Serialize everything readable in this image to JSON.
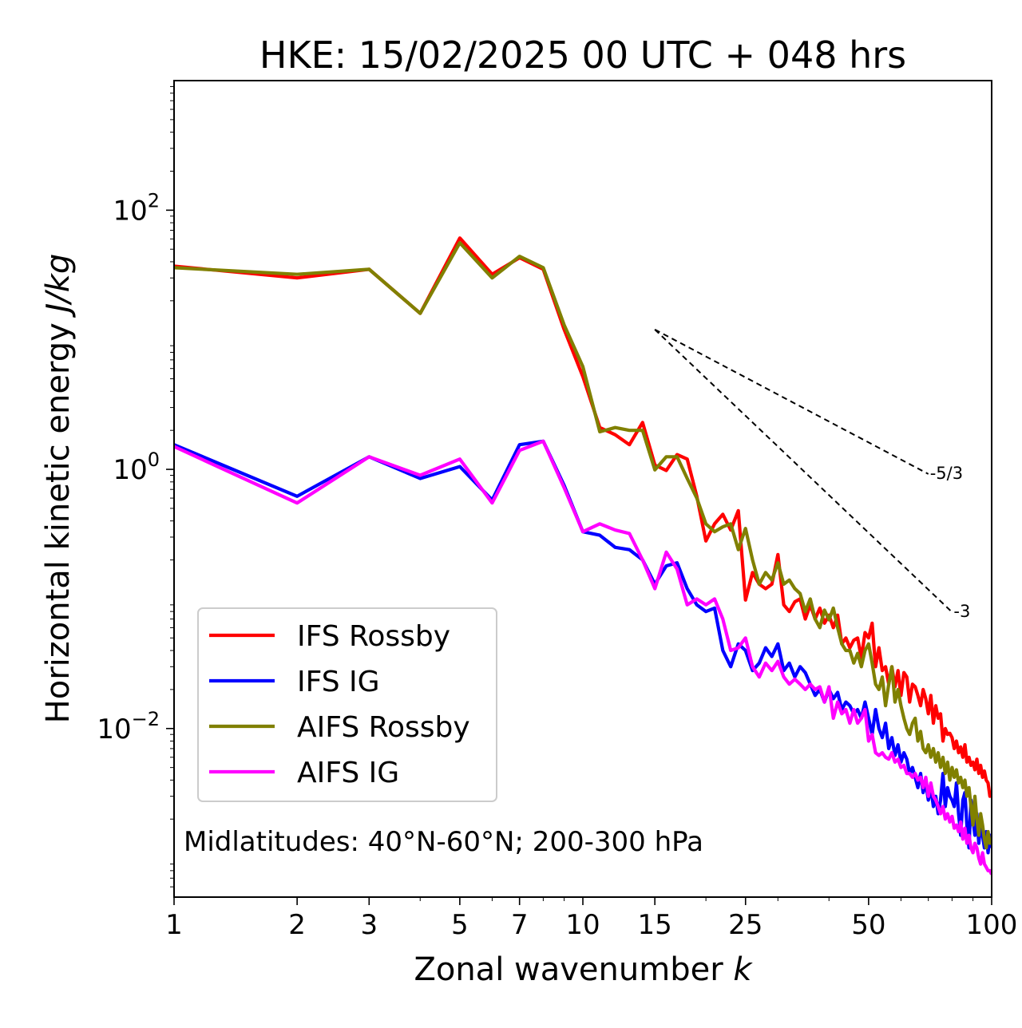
{
  "chart_data": {
    "type": "line",
    "title": "HKE: 15/02/2025 00 UTC + 048 hrs",
    "xlabel": "Zonal wavenumber k",
    "ylabel": "Horizontal kinetic energy J/kg",
    "xscale": "log",
    "yscale": "log",
    "xlim": [
      1,
      100
    ],
    "ylim": [
      0.0005,
      1000
    ],
    "grid": false,
    "legend_position": "lower-left",
    "x_ticks": [
      "1",
      "2",
      "3",
      "5",
      "7",
      "10",
      "15",
      "25",
      "50",
      "100"
    ],
    "y_ticks": [
      "10^2",
      "10^0",
      "10^-2"
    ],
    "annotation": "Midlatitudes: 40°N-60°N; 200-300 hPa",
    "reference_slopes": [
      {
        "label": "-5/3",
        "slope": -1.6667,
        "x_start": 15,
        "x_end": 70
      },
      {
        "label": "-3",
        "slope": -3,
        "x_start": 15,
        "x_end": 80
      }
    ],
    "x": [
      1,
      2,
      3,
      4,
      5,
      6,
      7,
      8,
      9,
      10,
      11,
      12,
      13,
      14,
      15,
      16,
      17,
      18,
      19,
      20,
      21,
      22,
      23,
      24,
      25,
      26,
      27,
      28,
      29,
      30,
      31,
      32,
      33,
      34,
      35,
      36,
      37,
      38,
      39,
      40,
      41,
      42,
      43,
      44,
      45,
      46,
      47,
      48,
      49,
      50,
      51,
      52,
      53,
      54,
      55,
      56,
      57,
      58,
      59,
      60,
      61,
      62,
      63,
      64,
      65,
      66,
      67,
      68,
      69,
      70,
      71,
      72,
      73,
      74,
      75,
      76,
      77,
      78,
      79,
      80,
      81,
      82,
      83,
      84,
      85,
      86,
      87,
      88,
      89,
      90,
      91,
      92,
      93,
      94,
      95,
      96,
      97,
      98,
      99,
      100
    ],
    "series": [
      {
        "name": "IFS Rossby",
        "color": "#ff0000",
        "values": [
          37,
          30,
          35,
          16,
          61,
          32,
          43,
          35,
          12,
          5.2,
          2.1,
          1.85,
          1.55,
          2.3,
          1.08,
          0.98,
          1.3,
          1.2,
          0.62,
          0.28,
          0.38,
          0.45,
          0.34,
          0.48,
          0.098,
          0.16,
          0.13,
          0.12,
          0.13,
          0.22,
          0.09,
          0.08,
          0.095,
          0.1,
          0.07,
          0.09,
          0.07,
          0.085,
          0.065,
          0.075,
          0.06,
          0.075,
          0.045,
          0.05,
          0.042,
          0.048,
          0.05,
          0.035,
          0.055,
          0.05,
          0.065,
          0.03,
          0.042,
          0.028,
          0.03,
          0.022,
          0.03,
          0.021,
          0.028,
          0.018,
          0.027,
          0.025,
          0.016,
          0.022,
          0.021,
          0.018,
          0.015,
          0.02,
          0.017,
          0.013,
          0.018,
          0.011,
          0.015,
          0.012,
          0.013,
          0.008,
          0.01,
          0.009,
          0.0092,
          0.0085,
          0.007,
          0.008,
          0.0065,
          0.0072,
          0.006,
          0.0075,
          0.0055,
          0.006,
          0.0052,
          0.0055,
          0.0048,
          0.0058,
          0.0045,
          0.0052,
          0.0042,
          0.0047,
          0.004,
          0.0038,
          0.003,
          0.0032
        ]
      },
      {
        "name": "IFS IG",
        "color": "#0000ff",
        "values": [
          1.55,
          0.62,
          1.25,
          0.85,
          1.05,
          0.58,
          1.55,
          1.65,
          0.75,
          0.33,
          0.31,
          0.25,
          0.24,
          0.2,
          0.13,
          0.18,
          0.19,
          0.12,
          0.09,
          0.08,
          0.085,
          0.04,
          0.03,
          0.045,
          0.04,
          0.028,
          0.032,
          0.042,
          0.036,
          0.045,
          0.028,
          0.032,
          0.025,
          0.03,
          0.027,
          0.022,
          0.018,
          0.02,
          0.016,
          0.02,
          0.017,
          0.019,
          0.014,
          0.016,
          0.015,
          0.013,
          0.014,
          0.012,
          0.016,
          0.012,
          0.009,
          0.014,
          0.01,
          0.0085,
          0.011,
          0.007,
          0.0085,
          0.0062,
          0.0075,
          0.0055,
          0.0065,
          0.0058,
          0.0045,
          0.005,
          0.0042,
          0.0035,
          0.0045,
          0.0032,
          0.0038,
          0.0028,
          0.0035,
          0.0025,
          0.003,
          0.0022,
          0.0028,
          0.0045,
          0.0025,
          0.0035,
          0.003,
          0.0028,
          0.0025,
          0.0038,
          0.0022,
          0.0015,
          0.0028,
          0.0032,
          0.0018,
          0.0012,
          0.0028,
          0.002,
          0.0015,
          0.0022,
          0.0013,
          0.0018,
          0.0015,
          0.0012,
          0.0016,
          0.0011,
          0.0015,
          0.0012
        ]
      },
      {
        "name": "AIFS Rossby",
        "color": "#808000",
        "values": [
          36,
          32,
          35,
          16,
          56,
          30,
          44,
          36,
          13,
          6.2,
          1.95,
          2.1,
          2.0,
          2.0,
          0.99,
          1.25,
          1.25,
          0.85,
          0.6,
          0.38,
          0.33,
          0.36,
          0.38,
          0.24,
          0.35,
          0.2,
          0.13,
          0.16,
          0.14,
          0.19,
          0.13,
          0.14,
          0.12,
          0.11,
          0.08,
          0.1,
          0.07,
          0.06,
          0.082,
          0.069,
          0.085,
          0.06,
          0.045,
          0.04,
          0.04,
          0.032,
          0.038,
          0.03,
          0.04,
          0.045,
          0.032,
          0.022,
          0.02,
          0.025,
          0.015,
          0.022,
          0.03,
          0.016,
          0.02,
          0.015,
          0.012,
          0.01,
          0.009,
          0.011,
          0.012,
          0.008,
          0.0095,
          0.007,
          0.0065,
          0.0075,
          0.006,
          0.007,
          0.0055,
          0.0065,
          0.005,
          0.006,
          0.0045,
          0.0055,
          0.004,
          0.005,
          0.0042,
          0.0048,
          0.0038,
          0.0042,
          0.0035,
          0.004,
          0.003,
          0.0035,
          0.0025,
          0.0018,
          0.003,
          0.002,
          0.0015,
          0.0022,
          0.0018,
          0.0014,
          0.0012,
          0.0016,
          0.0013,
          0.0014
        ]
      },
      {
        "name": "AIFS IG",
        "color": "#ff00ff",
        "values": [
          1.5,
          0.55,
          1.25,
          0.9,
          1.2,
          0.55,
          1.4,
          1.65,
          0.72,
          0.33,
          0.38,
          0.34,
          0.32,
          0.2,
          0.12,
          0.23,
          0.17,
          0.09,
          0.1,
          0.09,
          0.1,
          0.07,
          0.04,
          0.042,
          0.05,
          0.03,
          0.025,
          0.032,
          0.028,
          0.033,
          0.025,
          0.022,
          0.024,
          0.022,
          0.02,
          0.022,
          0.02,
          0.021,
          0.016,
          0.021,
          0.012,
          0.016,
          0.013,
          0.014,
          0.011,
          0.014,
          0.011,
          0.012,
          0.014,
          0.008,
          0.009,
          0.0065,
          0.0062,
          0.0065,
          0.006,
          0.0058,
          0.0065,
          0.0055,
          0.0058,
          0.005,
          0.0052,
          0.0045,
          0.0045,
          0.0042,
          0.0045,
          0.004,
          0.0042,
          0.0035,
          0.0042,
          0.003,
          0.0038,
          0.003,
          0.0028,
          0.0025,
          0.0022,
          0.0025,
          0.002,
          0.0022,
          0.0019,
          0.0021,
          0.0017,
          0.0018,
          0.0016,
          0.0019,
          0.0014,
          0.0017,
          0.0013,
          0.0015,
          0.0012,
          0.0011,
          0.0013,
          0.0012,
          0.001,
          0.0009,
          0.0011,
          0.0009,
          0.00085,
          0.0008,
          0.0008,
          0.00075
        ]
      }
    ]
  }
}
